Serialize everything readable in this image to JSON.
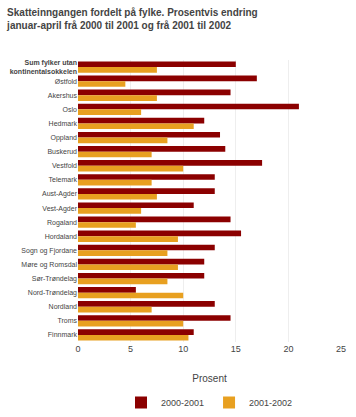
{
  "chart_data": {
    "type": "bar",
    "orientation": "horizontal",
    "title": "Skatteinngangen fordelt på fylke. Prosentvis endring",
    "subtitle": "januar-april frå 2000 til 2001 og frå 2001 til 2002",
    "categories": [
      "Sum fylker utan\nkontinentalsokkelen",
      "Østfold",
      "Akershus",
      "Oslo",
      "Hedmark",
      "Oppland",
      "Buskerud",
      "Vestfold",
      "Telemark",
      "Aust-Agder",
      "Vest-Agder",
      "Rogaland",
      "Hordaland",
      "Sogn og Fjordane",
      "Møre og Romsdal",
      "Sør-Trøndelag",
      "Nord-Trøndelag",
      "Nordland",
      "Troms",
      "Finnmark"
    ],
    "series": [
      {
        "name": "2000-2001",
        "color": "#8B0000",
        "values": [
          15.0,
          17.0,
          14.5,
          21.0,
          12.0,
          13.5,
          14.0,
          17.5,
          13.0,
          13.0,
          11.0,
          14.5,
          15.5,
          13.0,
          12.0,
          12.0,
          5.5,
          13.0,
          14.5,
          11.0
        ]
      },
      {
        "name": "2001-2002",
        "color": "#E8A020",
        "values": [
          7.5,
          4.5,
          7.5,
          6.0,
          11.0,
          8.5,
          7.0,
          10.0,
          7.0,
          7.5,
          6.0,
          5.5,
          9.5,
          8.5,
          9.5,
          8.5,
          10.0,
          7.0,
          10.0,
          10.5
        ]
      }
    ],
    "xlabel": "Prosent",
    "xlim": [
      0,
      25
    ],
    "xticks": [
      0,
      5,
      10,
      15,
      20,
      25
    ],
    "grid": true,
    "legend": "bottom"
  }
}
